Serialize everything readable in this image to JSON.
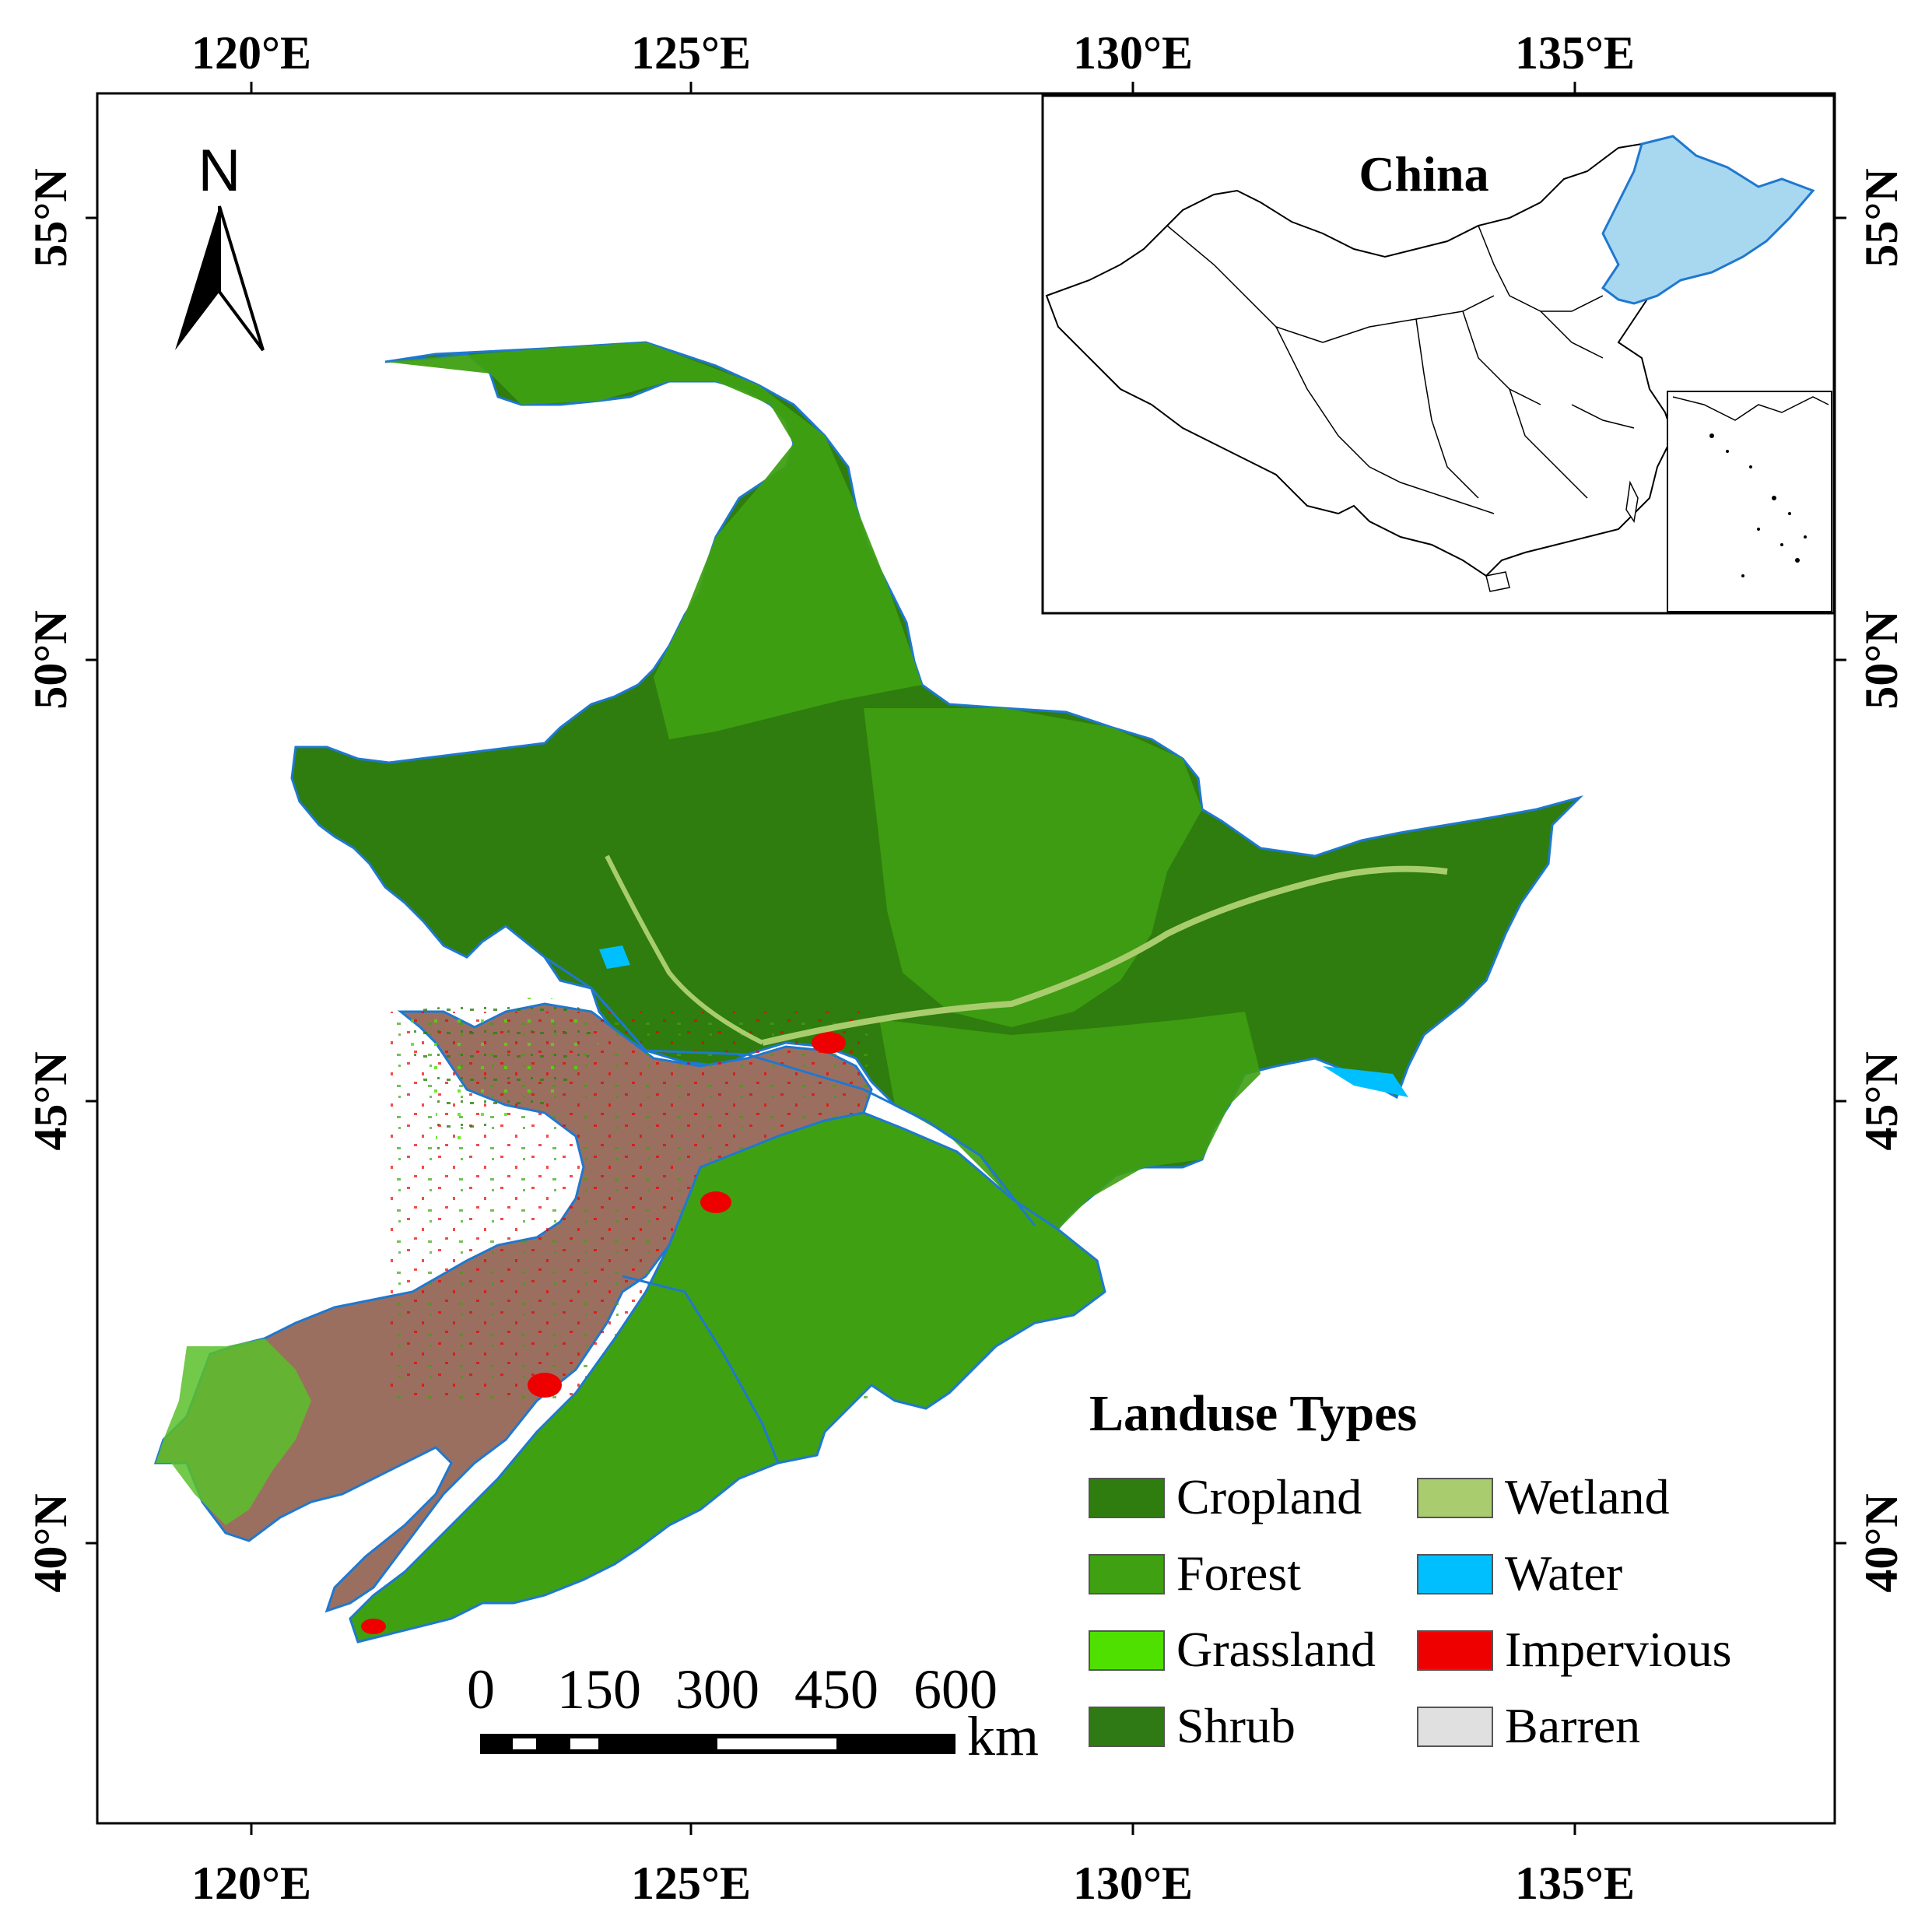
{
  "map": {
    "longitude_ticks": [
      "120°E",
      "125°E",
      "130°E",
      "135°E"
    ],
    "latitude_ticks": [
      "55°N",
      "50°N",
      "45°N",
      "40°N"
    ],
    "north_arrow_label": "N"
  },
  "inset": {
    "title": "China",
    "highlight_color": "#a8d8f0"
  },
  "legend": {
    "title": "Landuse Types",
    "items": [
      {
        "label": "Cropland",
        "color": "#2e7d0e"
      },
      {
        "label": "Forest",
        "color": "#3fa012"
      },
      {
        "label": "Grassland",
        "color": "#4fe000"
      },
      {
        "label": "Shrub",
        "color": "#2f7a14"
      },
      {
        "label": "Wetland",
        "color": "#a9cd6e"
      },
      {
        "label": "Water",
        "color": "#00bfff"
      },
      {
        "label": "Impervious",
        "color": "#ee0000"
      },
      {
        "label": "Barren",
        "color": "#e0e0e0"
      }
    ]
  },
  "scale_bar": {
    "ticks": [
      "0",
      "150",
      "300",
      "450",
      "600"
    ],
    "unit": "km"
  },
  "region_colors": {
    "cropland": "#2e7d0e",
    "forest": "#3fa012",
    "grassland": "#4fe000",
    "agri_brown": "#9b6f5f",
    "impervious": "#ee0000",
    "water": "#00bfff",
    "border": "#1f78d0"
  }
}
